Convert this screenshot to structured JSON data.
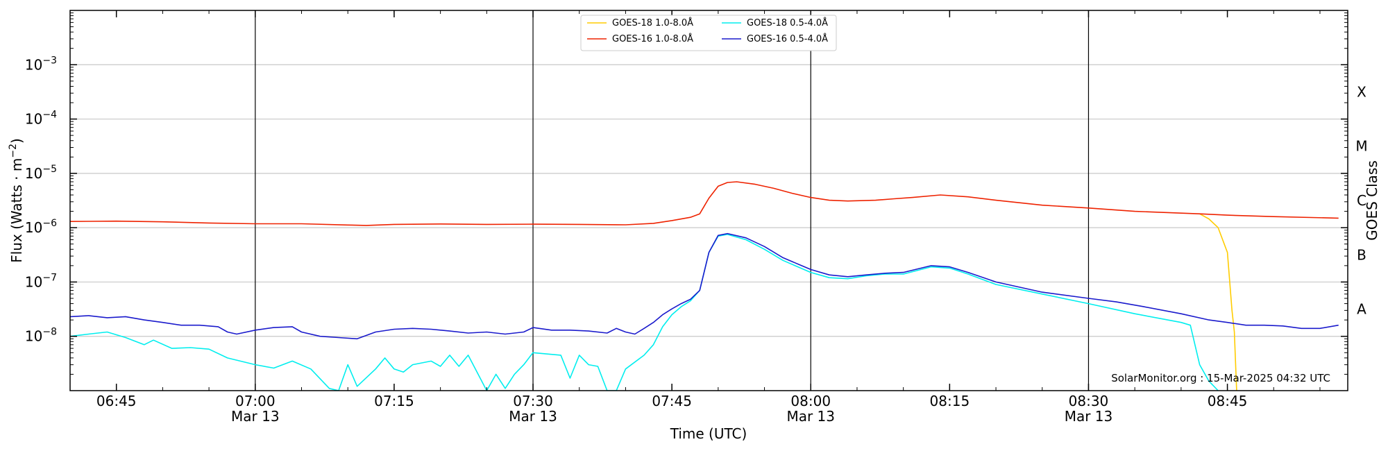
{
  "chart_data": {
    "type": "line",
    "xlabel": "Time (UTC)",
    "ylabel": "Flux (Watts · m",
    "ylabel_exponent": "−2",
    "ylabel_close": ")",
    "y2label": "GOES Class",
    "yscale": "log",
    "ylim": [
      1e-09,
      0.01
    ],
    "xlim": [
      "06:40",
      "08:58"
    ],
    "x_ticks": [
      {
        "t": "06:45",
        "label": "06:45",
        "date": ""
      },
      {
        "t": "07:00",
        "label": "07:00",
        "date": "Mar 13"
      },
      {
        "t": "07:15",
        "label": "07:15",
        "date": ""
      },
      {
        "t": "07:30",
        "label": "07:30",
        "date": "Mar 13"
      },
      {
        "t": "07:45",
        "label": "07:45",
        "date": ""
      },
      {
        "t": "08:00",
        "label": "08:00",
        "date": "Mar 13"
      },
      {
        "t": "08:15",
        "label": "08:15",
        "date": ""
      },
      {
        "t": "08:30",
        "label": "08:30",
        "date": "Mar 13"
      },
      {
        "t": "08:45",
        "label": "08:45",
        "date": ""
      }
    ],
    "y_ticks": [
      {
        "value": 1e-08,
        "base": "10",
        "exp": "−8"
      },
      {
        "value": 1e-07,
        "base": "10",
        "exp": "−7"
      },
      {
        "value": 1e-06,
        "base": "10",
        "exp": "−6"
      },
      {
        "value": 1e-05,
        "base": "10",
        "exp": "−5"
      },
      {
        "value": 0.0001,
        "base": "10",
        "exp": "−4"
      },
      {
        "value": 0.001,
        "base": "10",
        "exp": "−3"
      }
    ],
    "class_labels": [
      {
        "label": "A",
        "value": 1e-08
      },
      {
        "label": "B",
        "value": 1e-07
      },
      {
        "label": "C",
        "value": 1e-06
      },
      {
        "label": "M",
        "value": 1e-05
      },
      {
        "label": "X",
        "value": 0.0001
      }
    ],
    "vertical_lines": [
      "07:00",
      "07:30",
      "08:00",
      "08:30"
    ],
    "grid": true,
    "legend_position": "top-center",
    "credit": "SolarMonitor.org : 15-Mar-2025 04:32 UTC",
    "series": [
      {
        "name": "GOES-18 1.0-8.0Å",
        "color": "#ffcc00",
        "points": [
          [
            "08:42",
            1.8e-06
          ],
          [
            "08:43",
            1.45e-06
          ],
          [
            "08:44",
            1e-06
          ],
          [
            "08:45",
            3.5e-07
          ],
          [
            "08:45:30",
            3e-08
          ],
          [
            "08:45:45",
            1.2e-08
          ],
          [
            "08:46",
            1e-09
          ]
        ]
      },
      {
        "name": "GOES-16 1.0-8.0Å",
        "color": "#ee2200",
        "points": [
          [
            "06:40",
            1.3e-06
          ],
          [
            "06:45",
            1.32e-06
          ],
          [
            "06:50",
            1.28e-06
          ],
          [
            "06:55",
            1.22e-06
          ],
          [
            "07:00",
            1.18e-06
          ],
          [
            "07:05",
            1.18e-06
          ],
          [
            "07:10",
            1.12e-06
          ],
          [
            "07:12",
            1.1e-06
          ],
          [
            "07:15",
            1.15e-06
          ],
          [
            "07:20",
            1.17e-06
          ],
          [
            "07:25",
            1.15e-06
          ],
          [
            "07:30",
            1.16e-06
          ],
          [
            "07:35",
            1.15e-06
          ],
          [
            "07:40",
            1.13e-06
          ],
          [
            "07:43",
            1.2e-06
          ],
          [
            "07:45",
            1.35e-06
          ],
          [
            "07:47",
            1.55e-06
          ],
          [
            "07:48",
            1.8e-06
          ],
          [
            "07:49",
            3.5e-06
          ],
          [
            "07:50",
            5.8e-06
          ],
          [
            "07:51",
            6.8e-06
          ],
          [
            "07:52",
            7e-06
          ],
          [
            "07:54",
            6.3e-06
          ],
          [
            "07:56",
            5.3e-06
          ],
          [
            "07:58",
            4.3e-06
          ],
          [
            "08:00",
            3.6e-06
          ],
          [
            "08:02",
            3.2e-06
          ],
          [
            "08:04",
            3.1e-06
          ],
          [
            "08:07",
            3.2e-06
          ],
          [
            "08:09",
            3.4e-06
          ],
          [
            "08:11",
            3.6e-06
          ],
          [
            "08:14",
            4e-06
          ],
          [
            "08:17",
            3.7e-06
          ],
          [
            "08:20",
            3.2e-06
          ],
          [
            "08:25",
            2.6e-06
          ],
          [
            "08:30",
            2.3e-06
          ],
          [
            "08:35",
            2e-06
          ],
          [
            "08:42",
            1.8e-06
          ],
          [
            "08:45",
            1.7e-06
          ],
          [
            "08:50",
            1.6e-06
          ],
          [
            "08:57",
            1.5e-06
          ]
        ]
      },
      {
        "name": "GOES-18 0.5-4.0Å",
        "color": "#00eeee",
        "points": [
          [
            "06:40",
            1e-08
          ],
          [
            "06:42",
            1.1e-08
          ],
          [
            "06:44",
            1.2e-08
          ],
          [
            "06:46",
            9.5e-09
          ],
          [
            "06:48",
            7e-09
          ],
          [
            "06:49",
            8.5e-09
          ],
          [
            "06:51",
            6e-09
          ],
          [
            "06:53",
            6.2e-09
          ],
          [
            "06:55",
            5.8e-09
          ],
          [
            "06:57",
            4e-09
          ],
          [
            "07:00",
            3e-09
          ],
          [
            "07:02",
            2.6e-09
          ],
          [
            "07:04",
            3.5e-09
          ],
          [
            "07:06",
            2.5e-09
          ],
          [
            "07:08",
            1.1e-09
          ],
          [
            "07:09",
            1e-09
          ],
          [
            "07:10",
            3e-09
          ],
          [
            "07:11",
            1.2e-09
          ],
          [
            "07:13",
            2.5e-09
          ],
          [
            "07:14",
            4e-09
          ],
          [
            "07:15",
            2.5e-09
          ],
          [
            "07:16",
            2.2e-09
          ],
          [
            "07:17",
            3e-09
          ],
          [
            "07:19",
            3.5e-09
          ],
          [
            "07:20",
            2.8e-09
          ],
          [
            "07:21",
            4.5e-09
          ],
          [
            "07:22",
            2.8e-09
          ],
          [
            "07:23",
            4.5e-09
          ],
          [
            "07:25",
            1e-09
          ],
          [
            "07:26",
            2e-09
          ],
          [
            "07:27",
            1.1e-09
          ],
          [
            "07:28",
            2e-09
          ],
          [
            "07:29",
            3e-09
          ],
          [
            "07:30",
            5e-09
          ],
          [
            "07:33",
            4.5e-09
          ],
          [
            "07:34",
            1.7e-09
          ],
          [
            "07:35",
            4.5e-09
          ],
          [
            "07:36",
            3e-09
          ],
          [
            "07:37",
            2.8e-09
          ],
          [
            "07:38",
            1e-09
          ],
          [
            "07:39",
            1e-09
          ],
          [
            "07:40",
            2.5e-09
          ],
          [
            "07:42",
            4.5e-09
          ],
          [
            "07:43",
            7e-09
          ],
          [
            "07:44",
            1.5e-08
          ],
          [
            "07:45",
            2.5e-08
          ],
          [
            "07:46",
            3.5e-08
          ],
          [
            "07:47",
            4.5e-08
          ],
          [
            "07:48",
            7e-08
          ],
          [
            "07:49",
            3.5e-07
          ],
          [
            "07:50",
            7e-07
          ],
          [
            "07:51",
            7.5e-07
          ],
          [
            "07:53",
            6e-07
          ],
          [
            "07:55",
            4e-07
          ],
          [
            "07:57",
            2.5e-07
          ],
          [
            "08:00",
            1.5e-07
          ],
          [
            "08:02",
            1.2e-07
          ],
          [
            "08:04",
            1.15e-07
          ],
          [
            "08:06",
            1.3e-07
          ],
          [
            "08:08",
            1.4e-07
          ],
          [
            "08:10",
            1.4e-07
          ],
          [
            "08:13",
            1.9e-07
          ],
          [
            "08:15",
            1.8e-07
          ],
          [
            "08:17",
            1.4e-07
          ],
          [
            "08:20",
            9e-08
          ],
          [
            "08:25",
            6e-08
          ],
          [
            "08:30",
            4e-08
          ],
          [
            "08:35",
            2.6e-08
          ],
          [
            "08:40",
            1.8e-08
          ],
          [
            "08:41",
            1.6e-08
          ],
          [
            "08:42",
            3e-09
          ],
          [
            "08:43",
            1.5e-09
          ],
          [
            "08:44",
            1e-09
          ]
        ]
      },
      {
        "name": "GOES-16 0.5-4.0Å",
        "color": "#1a1acc",
        "points": [
          [
            "06:40",
            2.3e-08
          ],
          [
            "06:42",
            2.4e-08
          ],
          [
            "06:44",
            2.2e-08
          ],
          [
            "06:46",
            2.3e-08
          ],
          [
            "06:48",
            2e-08
          ],
          [
            "06:50",
            1.8e-08
          ],
          [
            "06:52",
            1.6e-08
          ],
          [
            "06:54",
            1.6e-08
          ],
          [
            "06:56",
            1.5e-08
          ],
          [
            "06:57",
            1.2e-08
          ],
          [
            "06:58",
            1.1e-08
          ],
          [
            "07:00",
            1.3e-08
          ],
          [
            "07:02",
            1.45e-08
          ],
          [
            "07:04",
            1.5e-08
          ],
          [
            "07:05",
            1.2e-08
          ],
          [
            "07:07",
            1e-08
          ],
          [
            "07:09",
            9.5e-09
          ],
          [
            "07:11",
            9e-09
          ],
          [
            "07:13",
            1.2e-08
          ],
          [
            "07:15",
            1.35e-08
          ],
          [
            "07:17",
            1.4e-08
          ],
          [
            "07:19",
            1.35e-08
          ],
          [
            "07:21",
            1.25e-08
          ],
          [
            "07:23",
            1.15e-08
          ],
          [
            "07:25",
            1.2e-08
          ],
          [
            "07:27",
            1.1e-08
          ],
          [
            "07:29",
            1.2e-08
          ],
          [
            "07:30",
            1.45e-08
          ],
          [
            "07:32",
            1.3e-08
          ],
          [
            "07:34",
            1.3e-08
          ],
          [
            "07:36",
            1.25e-08
          ],
          [
            "07:38",
            1.15e-08
          ],
          [
            "07:39",
            1.4e-08
          ],
          [
            "07:40",
            1.2e-08
          ],
          [
            "07:41",
            1.1e-08
          ],
          [
            "07:42",
            1.4e-08
          ],
          [
            "07:43",
            1.8e-08
          ],
          [
            "07:44",
            2.5e-08
          ],
          [
            "07:45",
            3.2e-08
          ],
          [
            "07:46",
            4e-08
          ],
          [
            "07:47",
            4.8e-08
          ],
          [
            "07:48",
            7e-08
          ],
          [
            "07:49",
            3.5e-07
          ],
          [
            "07:50",
            7.2e-07
          ],
          [
            "07:51",
            7.8e-07
          ],
          [
            "07:53",
            6.5e-07
          ],
          [
            "07:55",
            4.5e-07
          ],
          [
            "07:57",
            2.8e-07
          ],
          [
            "08:00",
            1.7e-07
          ],
          [
            "08:02",
            1.35e-07
          ],
          [
            "08:04",
            1.25e-07
          ],
          [
            "08:06",
            1.35e-07
          ],
          [
            "08:08",
            1.45e-07
          ],
          [
            "08:10",
            1.5e-07
          ],
          [
            "08:13",
            2e-07
          ],
          [
            "08:15",
            1.9e-07
          ],
          [
            "08:17",
            1.5e-07
          ],
          [
            "08:20",
            1e-07
          ],
          [
            "08:25",
            6.5e-08
          ],
          [
            "08:30",
            5e-08
          ],
          [
            "08:33",
            4.3e-08
          ],
          [
            "08:36",
            3.5e-08
          ],
          [
            "08:40",
            2.6e-08
          ],
          [
            "08:43",
            2e-08
          ],
          [
            "08:45",
            1.8e-08
          ],
          [
            "08:47",
            1.6e-08
          ],
          [
            "08:49",
            1.6e-08
          ],
          [
            "08:51",
            1.55e-08
          ],
          [
            "08:53",
            1.4e-08
          ],
          [
            "08:55",
            1.4e-08
          ],
          [
            "08:57",
            1.6e-08
          ]
        ]
      }
    ]
  }
}
